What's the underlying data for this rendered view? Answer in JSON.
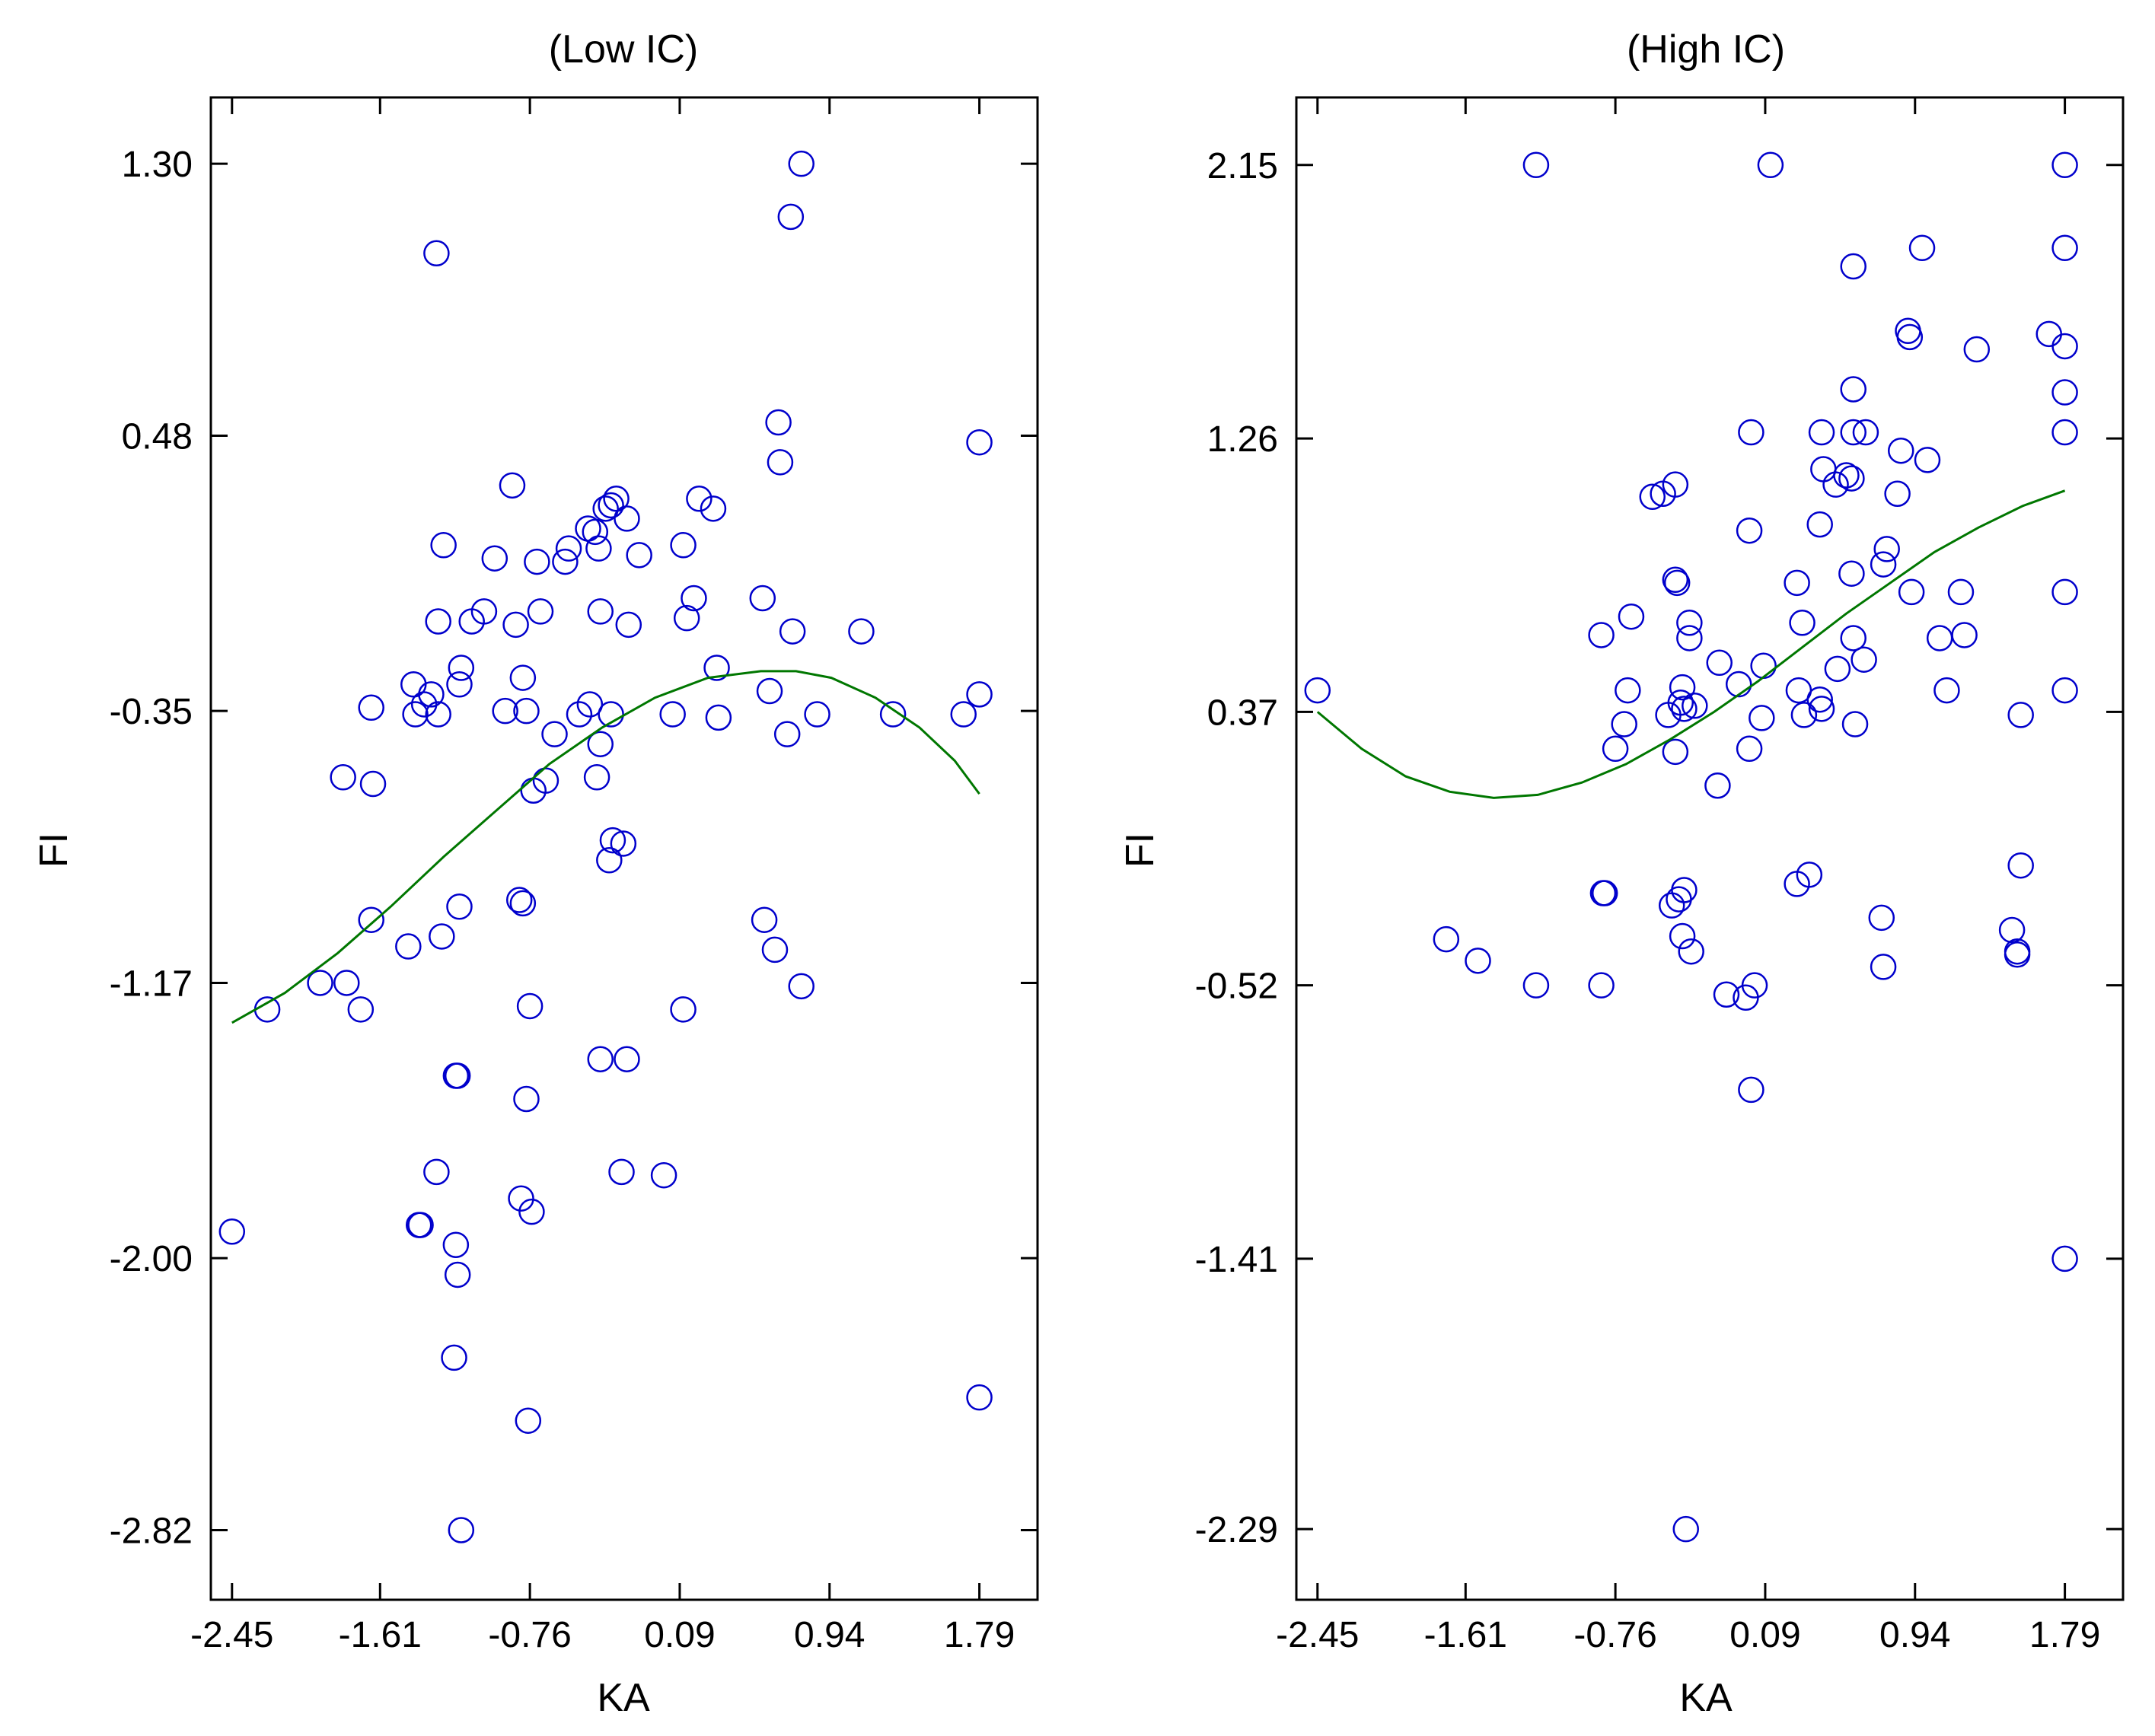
{
  "chart_data": [
    {
      "type": "scatter",
      "title": "(Low IC)",
      "xlabel": "KA",
      "ylabel": "FI",
      "xlim": [
        -2.57,
        2.12
      ],
      "ylim": [
        -3.03,
        1.5
      ],
      "xticks": [
        -2.45,
        -1.61,
        -0.76,
        0.09,
        0.94,
        1.79
      ],
      "xtick_labels": [
        "-2.45",
        "-1.61",
        "-0.76",
        "0.09",
        "0.94",
        "1.79"
      ],
      "yticks": [
        1.3,
        0.48,
        -0.35,
        -1.17,
        -2.0,
        -2.82
      ],
      "ytick_labels": [
        "1.30",
        "0.48",
        "-0.35",
        "-1.17",
        "-2.00",
        "-2.82"
      ],
      "grid": false,
      "marker_color": "#0000cc",
      "line_color": "#007700",
      "points": [
        {
          "x": -2.45,
          "y": -1.92
        },
        {
          "x": -2.25,
          "y": -1.25
        },
        {
          "x": -1.95,
          "y": -1.17
        },
        {
          "x": -1.8,
          "y": -1.17
        },
        {
          "x": -1.72,
          "y": -1.25
        },
        {
          "x": -1.66,
          "y": -0.98
        },
        {
          "x": -1.45,
          "y": -1.06
        },
        {
          "x": -1.82,
          "y": -0.55
        },
        {
          "x": -1.65,
          "y": -0.57
        },
        {
          "x": -1.66,
          "y": -0.34
        },
        {
          "x": -1.42,
          "y": -0.27
        },
        {
          "x": -1.41,
          "y": -0.36
        },
        {
          "x": -1.36,
          "y": -0.33
        },
        {
          "x": -1.32,
          "y": -0.3
        },
        {
          "x": -1.28,
          "y": -0.36
        },
        {
          "x": -1.28,
          "y": -0.08
        },
        {
          "x": -1.25,
          "y": 0.15
        },
        {
          "x": -1.29,
          "y": 1.03
        },
        {
          "x": -1.16,
          "y": -0.27
        },
        {
          "x": -1.15,
          "y": -0.22
        },
        {
          "x": -1.09,
          "y": -0.08
        },
        {
          "x": -1.02,
          "y": -0.05
        },
        {
          "x": -0.96,
          "y": 0.11
        },
        {
          "x": -0.86,
          "y": 0.33
        },
        {
          "x": -0.9,
          "y": -0.35
        },
        {
          "x": -0.84,
          "y": -0.09
        },
        {
          "x": -0.8,
          "y": -0.25
        },
        {
          "x": -0.78,
          "y": -0.35
        },
        {
          "x": -0.74,
          "y": -0.59
        },
        {
          "x": -0.7,
          "y": -0.05
        },
        {
          "x": -0.72,
          "y": 0.1
        },
        {
          "x": -0.67,
          "y": -0.56
        },
        {
          "x": -0.62,
          "y": -0.42
        },
        {
          "x": -0.56,
          "y": 0.1
        },
        {
          "x": -0.54,
          "y": 0.14
        },
        {
          "x": -0.48,
          "y": -0.36
        },
        {
          "x": -0.42,
          "y": -0.33
        },
        {
          "x": -0.43,
          "y": 0.2
        },
        {
          "x": -0.39,
          "y": 0.19
        },
        {
          "x": -0.37,
          "y": 0.14
        },
        {
          "x": -0.36,
          "y": -0.05
        },
        {
          "x": -0.33,
          "y": 0.26
        },
        {
          "x": -0.3,
          "y": 0.27
        },
        {
          "x": -0.36,
          "y": -0.45
        },
        {
          "x": -0.38,
          "y": -0.55
        },
        {
          "x": -0.3,
          "y": -0.36
        },
        {
          "x": -0.2,
          "y": -0.09
        },
        {
          "x": -0.21,
          "y": 0.23
        },
        {
          "x": -0.14,
          "y": 0.12
        },
        {
          "x": -0.31,
          "y": -0.8
        },
        {
          "x": -0.29,
          "y": -0.74
        },
        {
          "x": -0.23,
          "y": -0.75
        },
        {
          "x": -0.27,
          "y": 0.29
        },
        {
          "x": 0.05,
          "y": -0.36
        },
        {
          "x": 0.11,
          "y": 0.15
        },
        {
          "x": 0.13,
          "y": -0.07
        },
        {
          "x": 0.2,
          "y": 0.29
        },
        {
          "x": 0.28,
          "y": 0.26
        },
        {
          "x": 0.17,
          "y": -0.01
        },
        {
          "x": 0.31,
          "y": -0.37
        },
        {
          "x": 0.3,
          "y": -0.22
        },
        {
          "x": 0.65,
          "y": 0.52
        },
        {
          "x": 0.66,
          "y": 0.4
        },
        {
          "x": 0.72,
          "y": 1.14
        },
        {
          "x": 0.78,
          "y": 1.3
        },
        {
          "x": 0.73,
          "y": -0.11
        },
        {
          "x": 0.6,
          "y": -0.29
        },
        {
          "x": 0.56,
          "y": -0.01
        },
        {
          "x": 0.7,
          "y": -0.42
        },
        {
          "x": 0.87,
          "y": -0.36
        },
        {
          "x": 1.12,
          "y": -0.11
        },
        {
          "x": 1.3,
          "y": -0.36
        },
        {
          "x": 1.7,
          "y": -0.36
        },
        {
          "x": 1.79,
          "y": 0.46
        },
        {
          "x": 1.79,
          "y": -0.3
        },
        {
          "x": 0.57,
          "y": -0.98
        },
        {
          "x": 0.63,
          "y": -1.07
        },
        {
          "x": 0.78,
          "y": -1.18
        },
        {
          "x": 0.11,
          "y": -1.25
        },
        {
          "x": -0.21,
          "y": -1.4
        },
        {
          "x": -0.36,
          "y": -1.4
        },
        {
          "x": -0.76,
          "y": -1.24
        },
        {
          "x": -0.8,
          "y": -0.93
        },
        {
          "x": -0.82,
          "y": -0.92
        },
        {
          "x": -1.26,
          "y": -1.03
        },
        {
          "x": -1.16,
          "y": -0.94
        },
        {
          "x": -1.17,
          "y": -1.45
        },
        {
          "x": -1.18,
          "y": -1.45
        },
        {
          "x": -0.78,
          "y": -1.52
        },
        {
          "x": -1.29,
          "y": -1.74
        },
        {
          "x": -1.38,
          "y": -1.9
        },
        {
          "x": -1.39,
          "y": -1.9
        },
        {
          "x": -1.18,
          "y": -1.96
        },
        {
          "x": -1.17,
          "y": -2.05
        },
        {
          "x": -0.81,
          "y": -1.82
        },
        {
          "x": -0.75,
          "y": -1.86
        },
        {
          "x": -1.19,
          "y": -2.3
        },
        {
          "x": -0.77,
          "y": -2.49
        },
        {
          "x": -1.15,
          "y": -2.82
        },
        {
          "x": -0.24,
          "y": -1.74
        },
        {
          "x": 0.0,
          "y": -1.75
        },
        {
          "x": 1.79,
          "y": -2.42
        }
      ],
      "fit_curve": [
        {
          "x": -2.45,
          "y": -1.29
        },
        {
          "x": -2.15,
          "y": -1.2
        },
        {
          "x": -1.85,
          "y": -1.08
        },
        {
          "x": -1.55,
          "y": -0.94
        },
        {
          "x": -1.25,
          "y": -0.79
        },
        {
          "x": -0.95,
          "y": -0.65
        },
        {
          "x": -0.65,
          "y": -0.51
        },
        {
          "x": -0.35,
          "y": -0.4
        },
        {
          "x": -0.05,
          "y": -0.31
        },
        {
          "x": 0.25,
          "y": -0.25
        },
        {
          "x": 0.55,
          "y": -0.23
        },
        {
          "x": 0.75,
          "y": -0.23
        },
        {
          "x": 0.95,
          "y": -0.25
        },
        {
          "x": 1.2,
          "y": -0.31
        },
        {
          "x": 1.45,
          "y": -0.4
        },
        {
          "x": 1.65,
          "y": -0.5
        },
        {
          "x": 1.79,
          "y": -0.6
        }
      ]
    },
    {
      "type": "scatter",
      "title": "(High IC)",
      "xlabel": "KA",
      "ylabel": "FI",
      "xlim": [
        -2.57,
        2.12
      ],
      "ylim": [
        -2.52,
        2.37
      ],
      "xticks": [
        -2.45,
        -1.61,
        -0.76,
        0.09,
        0.94,
        1.79
      ],
      "xtick_labels": [
        "-2.45",
        "-1.61",
        "-0.76",
        "0.09",
        "0.94",
        "1.79"
      ],
      "yticks": [
        2.15,
        1.26,
        0.37,
        -0.52,
        -1.41,
        -2.29
      ],
      "ytick_labels": [
        "2.15",
        "1.26",
        "0.37",
        "-0.52",
        "-1.41",
        "-2.29"
      ],
      "grid": false,
      "marker_color": "#0000cc",
      "line_color": "#007700",
      "points": [
        {
          "x": -2.45,
          "y": 0.44
        },
        {
          "x": -1.72,
          "y": -0.37
        },
        {
          "x": -1.54,
          "y": -0.44
        },
        {
          "x": -1.21,
          "y": -0.52
        },
        {
          "x": -1.21,
          "y": 2.15
        },
        {
          "x": -0.84,
          "y": -0.52
        },
        {
          "x": -0.84,
          "y": 0.62
        },
        {
          "x": -0.83,
          "y": -0.22
        },
        {
          "x": -0.82,
          "y": -0.22
        },
        {
          "x": -0.67,
          "y": 0.68
        },
        {
          "x": -0.69,
          "y": 0.44
        },
        {
          "x": -0.71,
          "y": 0.33
        },
        {
          "x": -0.76,
          "y": 0.25
        },
        {
          "x": -0.49,
          "y": 1.08
        },
        {
          "x": -0.55,
          "y": 1.07
        },
        {
          "x": -0.42,
          "y": 1.11
        },
        {
          "x": -0.46,
          "y": 0.36
        },
        {
          "x": -0.42,
          "y": 0.8
        },
        {
          "x": -0.41,
          "y": 0.79
        },
        {
          "x": -0.34,
          "y": 0.66
        },
        {
          "x": -0.39,
          "y": 0.4
        },
        {
          "x": -0.38,
          "y": 0.45
        },
        {
          "x": -0.37,
          "y": 0.38
        },
        {
          "x": -0.42,
          "y": 0.24
        },
        {
          "x": -0.31,
          "y": 0.39
        },
        {
          "x": -0.33,
          "y": -0.41
        },
        {
          "x": -0.37,
          "y": -0.21
        },
        {
          "x": -0.4,
          "y": -0.24
        },
        {
          "x": -0.44,
          "y": -0.26
        },
        {
          "x": -0.36,
          "y": -2.29
        },
        {
          "x": -0.38,
          "y": -0.36
        },
        {
          "x": -0.34,
          "y": 0.61
        },
        {
          "x": -0.18,
          "y": 0.13
        },
        {
          "x": -0.17,
          "y": 0.53
        },
        {
          "x": -0.06,
          "y": 0.46
        },
        {
          "x": -0.13,
          "y": -0.55
        },
        {
          "x": -0.02,
          "y": -0.56
        },
        {
          "x": 0.01,
          "y": -0.86
        },
        {
          "x": 0.03,
          "y": -0.52
        },
        {
          "x": 0.0,
          "y": 0.25
        },
        {
          "x": 0.08,
          "y": 0.52
        },
        {
          "x": 0.07,
          "y": 0.35
        },
        {
          "x": 0.0,
          "y": 0.96
        },
        {
          "x": 0.01,
          "y": 1.28
        },
        {
          "x": 0.12,
          "y": 2.15
        },
        {
          "x": 0.27,
          "y": 0.79
        },
        {
          "x": 0.3,
          "y": 0.66
        },
        {
          "x": 0.28,
          "y": 0.44
        },
        {
          "x": 0.31,
          "y": 0.36
        },
        {
          "x": 0.27,
          "y": -0.19
        },
        {
          "x": 0.34,
          "y": -0.16
        },
        {
          "x": 0.4,
          "y": 0.41
        },
        {
          "x": 0.41,
          "y": 0.38
        },
        {
          "x": 0.42,
          "y": 1.16
        },
        {
          "x": 0.49,
          "y": 1.11
        },
        {
          "x": 0.55,
          "y": 1.14
        },
        {
          "x": 0.58,
          "y": 1.13
        },
        {
          "x": 0.4,
          "y": 0.98
        },
        {
          "x": 0.41,
          "y": 1.28
        },
        {
          "x": 0.5,
          "y": 0.51
        },
        {
          "x": 0.59,
          "y": 0.61
        },
        {
          "x": 0.58,
          "y": 0.82
        },
        {
          "x": 0.6,
          "y": 0.33
        },
        {
          "x": 0.65,
          "y": 0.54
        },
        {
          "x": 0.59,
          "y": 1.28
        },
        {
          "x": 0.66,
          "y": 1.28
        },
        {
          "x": 0.59,
          "y": 1.42
        },
        {
          "x": 0.59,
          "y": 1.82
        },
        {
          "x": 0.76,
          "y": 0.85
        },
        {
          "x": 0.78,
          "y": 0.9
        },
        {
          "x": 0.84,
          "y": 1.08
        },
        {
          "x": 0.86,
          "y": 1.22
        },
        {
          "x": 0.9,
          "y": 1.61
        },
        {
          "x": 0.91,
          "y": 1.59
        },
        {
          "x": 0.98,
          "y": 1.88
        },
        {
          "x": 1.01,
          "y": 1.19
        },
        {
          "x": 0.92,
          "y": 0.76
        },
        {
          "x": 1.08,
          "y": 0.61
        },
        {
          "x": 1.12,
          "y": 0.44
        },
        {
          "x": 1.22,
          "y": 0.62
        },
        {
          "x": 1.2,
          "y": 0.76
        },
        {
          "x": 1.29,
          "y": 1.55
        },
        {
          "x": 1.54,
          "y": 0.36
        },
        {
          "x": 1.54,
          "y": -0.13
        },
        {
          "x": 1.49,
          "y": -0.34
        },
        {
          "x": 1.52,
          "y": -0.41
        },
        {
          "x": 1.52,
          "y": -0.42
        },
        {
          "x": 0.75,
          "y": -0.3
        },
        {
          "x": 0.76,
          "y": -0.46
        },
        {
          "x": 1.7,
          "y": 1.6
        },
        {
          "x": 1.79,
          "y": 1.56
        },
        {
          "x": 1.79,
          "y": 1.41
        },
        {
          "x": 1.79,
          "y": 1.28
        },
        {
          "x": 1.79,
          "y": 1.88
        },
        {
          "x": 1.79,
          "y": 2.15
        },
        {
          "x": 1.79,
          "y": 0.76
        },
        {
          "x": 1.79,
          "y": 0.44
        },
        {
          "x": 1.79,
          "y": -1.41
        }
      ],
      "fit_curve": [
        {
          "x": -2.45,
          "y": 0.37
        },
        {
          "x": -2.2,
          "y": 0.25
        },
        {
          "x": -1.95,
          "y": 0.16
        },
        {
          "x": -1.7,
          "y": 0.11
        },
        {
          "x": -1.45,
          "y": 0.09
        },
        {
          "x": -1.2,
          "y": 0.1
        },
        {
          "x": -0.95,
          "y": 0.14
        },
        {
          "x": -0.7,
          "y": 0.2
        },
        {
          "x": -0.45,
          "y": 0.28
        },
        {
          "x": -0.2,
          "y": 0.37
        },
        {
          "x": 0.05,
          "y": 0.47
        },
        {
          "x": 0.3,
          "y": 0.58
        },
        {
          "x": 0.55,
          "y": 0.69
        },
        {
          "x": 0.8,
          "y": 0.79
        },
        {
          "x": 1.05,
          "y": 0.89
        },
        {
          "x": 1.3,
          "y": 0.97
        },
        {
          "x": 1.55,
          "y": 1.04
        },
        {
          "x": 1.79,
          "y": 1.09
        }
      ]
    }
  ]
}
